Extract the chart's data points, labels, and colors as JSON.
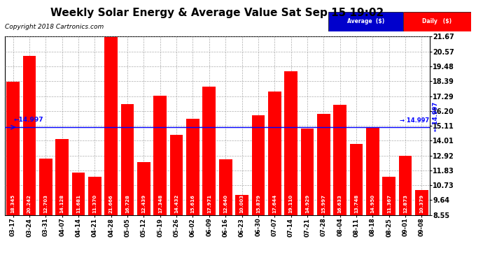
{
  "title": "Weekly Solar Energy & Average Value Sat Sep 15 19:02",
  "copyright": "Copyright 2018 Cartronics.com",
  "categories": [
    "03-17",
    "03-24",
    "03-31",
    "04-07",
    "04-14",
    "04-21",
    "04-28",
    "05-05",
    "05-12",
    "05-19",
    "05-26",
    "06-02",
    "06-09",
    "06-16",
    "06-23",
    "06-30",
    "07-07",
    "07-14",
    "07-21",
    "07-28",
    "08-04",
    "08-11",
    "08-18",
    "08-25",
    "09-01",
    "09-08"
  ],
  "values": [
    18.345,
    20.242,
    12.703,
    14.128,
    11.681,
    11.37,
    21.666,
    16.728,
    12.439,
    17.348,
    14.432,
    15.616,
    17.971,
    12.64,
    10.003,
    15.879,
    17.644,
    19.11,
    14.929,
    15.997,
    16.633,
    13.748,
    14.95,
    11.367,
    12.873,
    10.379
  ],
  "average_line": 14.997,
  "bar_color": "#FF0000",
  "average_line_color": "#0000FF",
  "background_color": "#FFFFFF",
  "plot_bg_color": "#FFFFFF",
  "grid_color": "#999999",
  "yticks": [
    8.55,
    9.64,
    10.73,
    11.83,
    12.92,
    14.01,
    15.11,
    16.2,
    17.29,
    18.39,
    19.48,
    20.57,
    21.67
  ],
  "avg_label": "Average  ($)",
  "daily_label": "Daily   ($)",
  "avg_label_bg": "#0000CC",
  "daily_label_bg": "#FF0000",
  "avg_line_label": "14.997",
  "title_fontsize": 11,
  "copyright_fontsize": 6.5,
  "tick_label_fontsize": 6,
  "bar_label_fontsize": 5,
  "ylabel_right_fontsize": 7
}
